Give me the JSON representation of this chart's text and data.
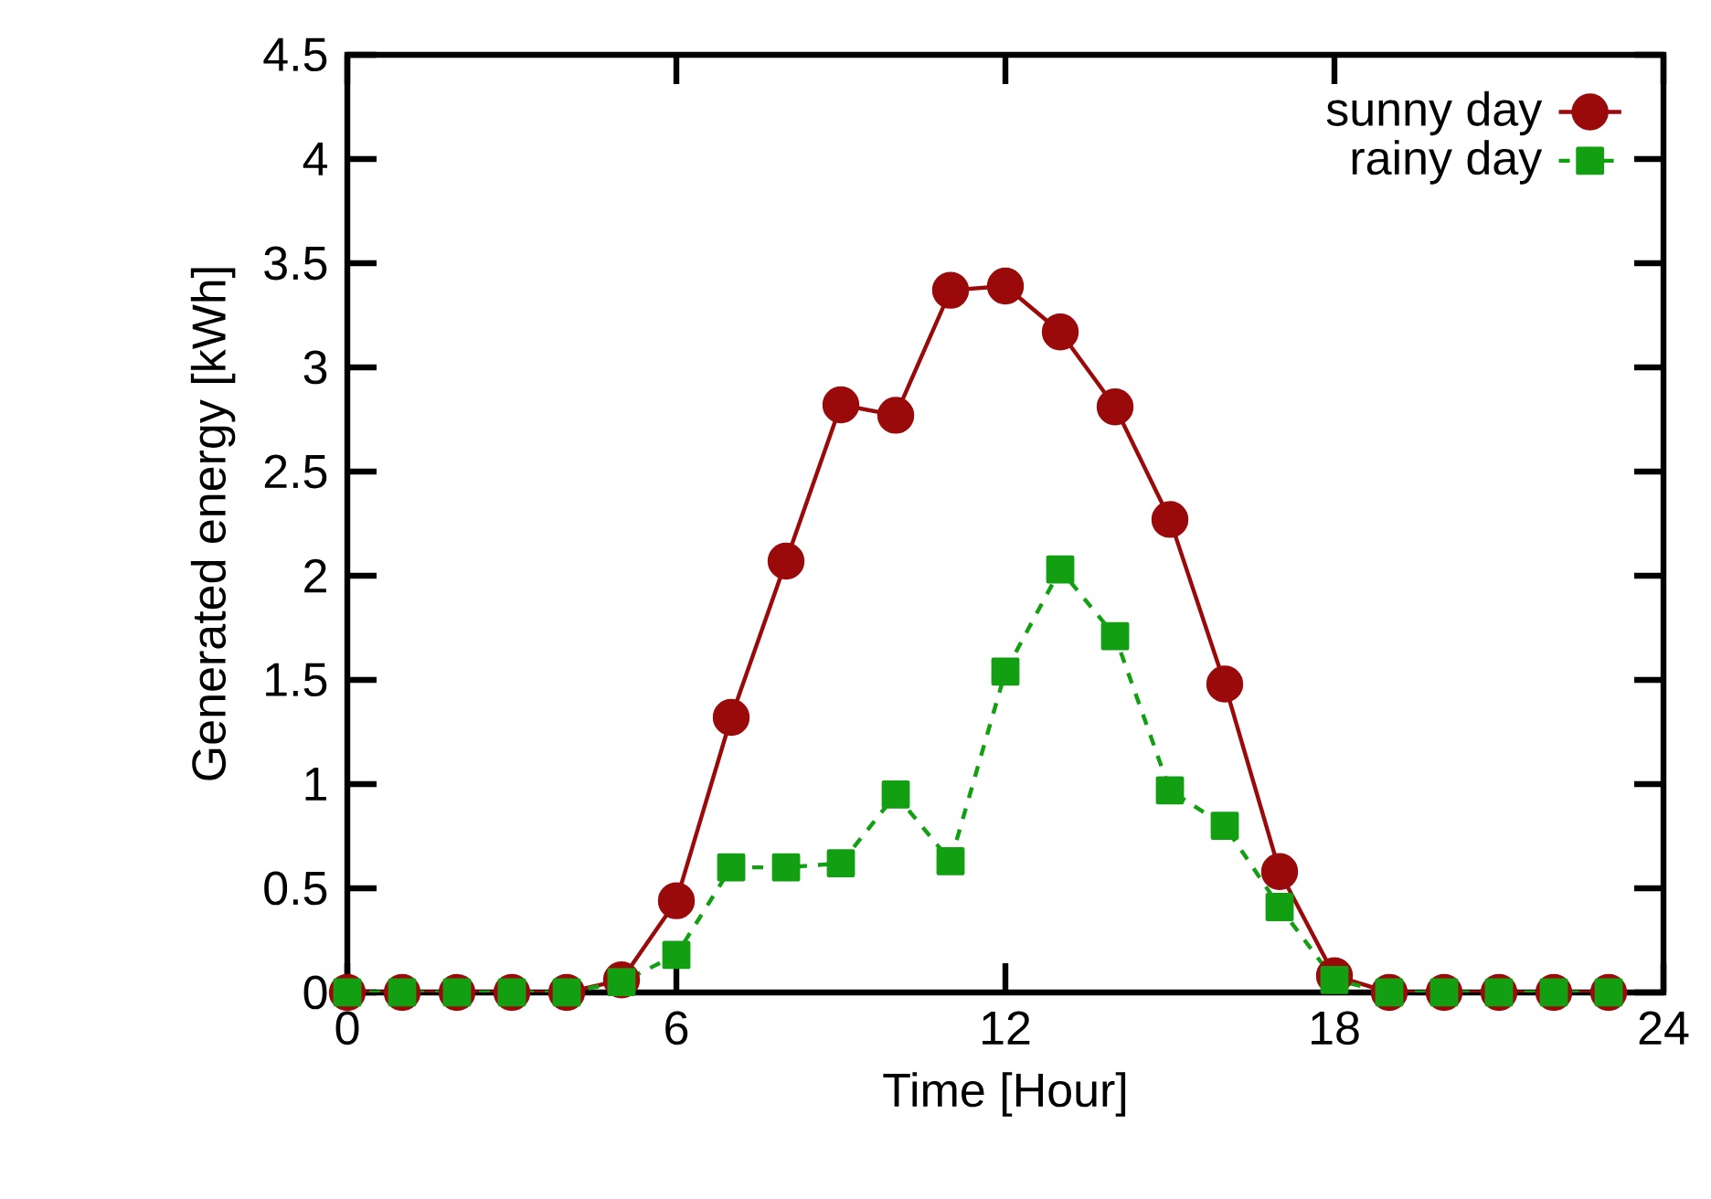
{
  "chart_data": {
    "type": "line",
    "xlabel": "Time [Hour]",
    "ylabel": "Generated energy [kWh]",
    "x": [
      0,
      1,
      2,
      3,
      4,
      5,
      6,
      7,
      8,
      9,
      10,
      11,
      12,
      13,
      14,
      15,
      16,
      17,
      18,
      19,
      20,
      21,
      22,
      23
    ],
    "series": [
      {
        "name": "sunny day",
        "color": "#9b0a0a",
        "marker": "circle",
        "line_style": "solid",
        "values": [
          0,
          0,
          0,
          0,
          0,
          0.06,
          0.44,
          1.32,
          2.07,
          2.82,
          2.77,
          3.37,
          3.39,
          3.17,
          2.81,
          2.27,
          1.48,
          0.58,
          0.08,
          0,
          0,
          0,
          0,
          0
        ]
      },
      {
        "name": "rainy day",
        "color": "#12a012",
        "marker": "square",
        "line_style": "dashed",
        "values": [
          0,
          0,
          0,
          0,
          0,
          0.05,
          0.18,
          0.6,
          0.6,
          0.62,
          0.95,
          0.63,
          1.54,
          2.03,
          1.71,
          0.97,
          0.8,
          0.41,
          0.06,
          0,
          0,
          0,
          0,
          0
        ]
      }
    ],
    "xlim": [
      0,
      24
    ],
    "xticks": [
      0,
      6,
      12,
      18,
      24
    ],
    "ylim": [
      0,
      4.5
    ],
    "yticks": [
      0,
      0.5,
      1,
      1.5,
      2,
      2.5,
      3,
      3.5,
      4,
      4.5
    ],
    "grid": false,
    "legend": "top right"
  }
}
